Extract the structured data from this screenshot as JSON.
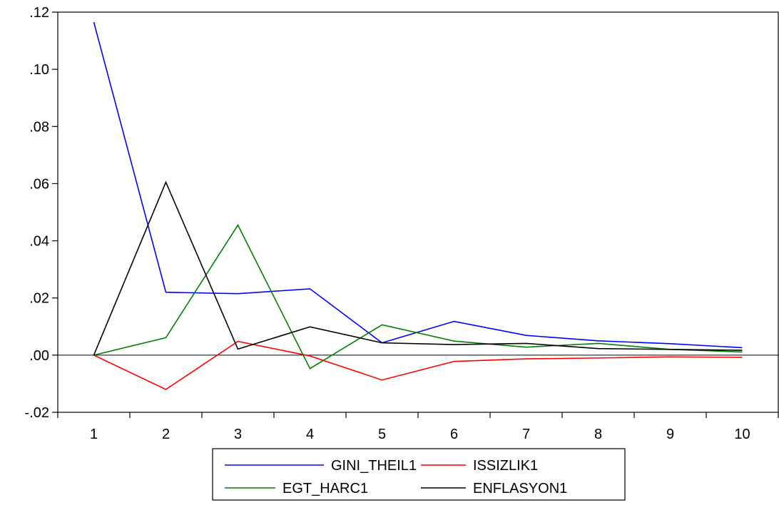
{
  "chart_data": {
    "type": "line",
    "title": "",
    "xlabel": "",
    "ylabel": "",
    "categories": [
      "1",
      "2",
      "3",
      "4",
      "5",
      "6",
      "7",
      "8",
      "9",
      "10"
    ],
    "ylim": [
      -0.02,
      0.12
    ],
    "yticks": [
      -0.02,
      0.0,
      0.02,
      0.04,
      0.06,
      0.08,
      0.1,
      0.12
    ],
    "ytick_labels": [
      "-.02",
      ".00",
      ".02",
      ".04",
      ".06",
      ".08",
      ".10",
      ".12"
    ],
    "grid": false,
    "zero_line": true,
    "legend_position": "bottom-center",
    "series": [
      {
        "name": "GINI_THEIL1",
        "color": "#0000ff",
        "values": [
          0.1165,
          0.022,
          0.0215,
          0.0232,
          0.0043,
          0.0118,
          0.0069,
          0.005,
          0.004,
          0.0026
        ]
      },
      {
        "name": "ISSIZLIK1",
        "color": "#ff0000",
        "values": [
          0.0,
          -0.012,
          0.0048,
          -0.0003,
          -0.0087,
          -0.0022,
          -0.0013,
          -0.001,
          -0.0006,
          -0.0008
        ]
      },
      {
        "name": "EGT_HARC1",
        "color": "#008000",
        "values": [
          0.0,
          0.0061,
          0.0455,
          -0.0047,
          0.0106,
          0.0049,
          0.0028,
          0.0041,
          0.002,
          0.0011
        ]
      },
      {
        "name": "ENFLASYON1",
        "color": "#000000",
        "values": [
          0.0,
          0.0605,
          0.0021,
          0.0099,
          0.0043,
          0.0037,
          0.0041,
          0.0023,
          0.002,
          0.0017
        ]
      }
    ]
  }
}
